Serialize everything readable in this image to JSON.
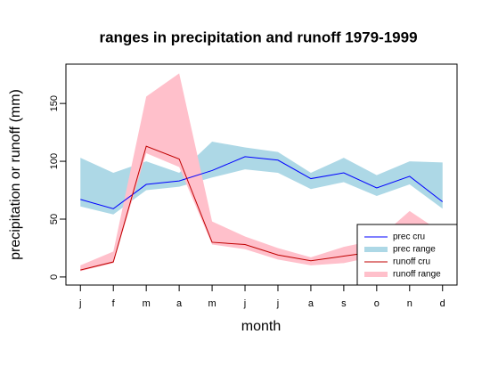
{
  "chart_data": {
    "type": "line",
    "title": "ranges in precipitation and runoff 1979-1999",
    "x_label": "month",
    "y_label": "precipitation or runoff (mm)",
    "categories": [
      "j",
      "f",
      "m",
      "a",
      "m",
      "j",
      "j",
      "a",
      "s",
      "o",
      "n",
      "d"
    ],
    "ylim": [
      -7,
      184
    ],
    "yticks": [
      0,
      50,
      100,
      150
    ],
    "legend": "bottomright",
    "series": [
      {
        "name": "prec cru",
        "color": "#0000ff",
        "values": [
          67,
          59,
          80,
          83,
          92,
          104,
          101,
          85,
          90,
          77,
          87,
          65
        ]
      },
      {
        "name": "prec range",
        "color": "#add8e6",
        "lower": [
          61,
          54,
          75,
          78,
          86,
          93,
          90,
          76,
          82,
          70,
          80,
          59
        ],
        "upper": [
          103,
          90,
          100,
          90,
          117,
          112,
          108,
          90,
          103,
          88,
          100,
          99
        ]
      },
      {
        "name": "runoff cru",
        "color": "#c00000",
        "values": [
          6,
          13,
          113,
          102,
          30,
          28,
          19,
          14,
          18,
          22,
          40,
          30
        ]
      },
      {
        "name": "runoff range",
        "color": "#ffc0cb",
        "lower": [
          5,
          12,
          107,
          95,
          28,
          24,
          15,
          10,
          12,
          18,
          28,
          20
        ],
        "upper": [
          10,
          22,
          156,
          176,
          48,
          35,
          25,
          17,
          26,
          32,
          57,
          38
        ]
      }
    ]
  }
}
